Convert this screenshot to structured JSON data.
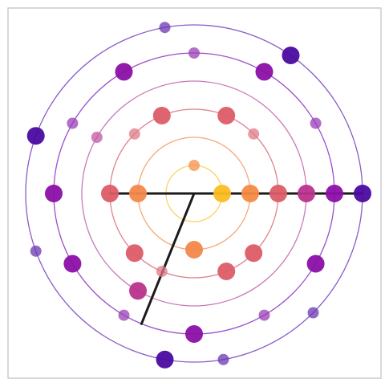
{
  "chart_data": {
    "type": "scatter",
    "description_visible_text": "",
    "center": [
      0,
      0
    ],
    "rings": [
      {
        "radius": 1,
        "color": "#fcd267"
      },
      {
        "radius": 2,
        "color": "#f5a97a"
      },
      {
        "radius": 3,
        "color": "#e0838f"
      },
      {
        "radius": 4,
        "color": "#c97ab8"
      },
      {
        "radius": 5,
        "color": "#9a4fc9"
      },
      {
        "radius": 6,
        "color": "#8a5cc9"
      }
    ],
    "points": [
      {
        "ring": 1,
        "angle_deg": 0,
        "size": "large",
        "color": "#fbbd21"
      },
      {
        "ring": 1,
        "angle_deg": 270,
        "size": "small",
        "color": "#f68f4a"
      },
      {
        "ring": 2,
        "angle_deg": 0,
        "size": "large",
        "color": "#f68a43"
      },
      {
        "ring": 2,
        "angle_deg": 90,
        "size": "large",
        "color": "#f3874a"
      },
      {
        "ring": 2,
        "angle_deg": 180,
        "size": "large",
        "color": "#f3884a"
      },
      {
        "ring": 3,
        "angle_deg": 0,
        "size": "large",
        "color": "#dc5d68"
      },
      {
        "ring": 3,
        "angle_deg": 45,
        "size": "large",
        "color": "#dc5d68"
      },
      {
        "ring": 3,
        "angle_deg": 67.5,
        "size": "large",
        "color": "#dc5d68"
      },
      {
        "ring": 3,
        "angle_deg": 112.5,
        "size": "small",
        "color": "#e07a85"
      },
      {
        "ring": 3,
        "angle_deg": 135,
        "size": "large",
        "color": "#dc5d68"
      },
      {
        "ring": 3,
        "angle_deg": 180,
        "size": "large",
        "color": "#dc5d68"
      },
      {
        "ring": 3,
        "angle_deg": 225,
        "size": "small",
        "color": "#e07a85"
      },
      {
        "ring": 3,
        "angle_deg": 247.5,
        "size": "large",
        "color": "#dc5d68"
      },
      {
        "ring": 3,
        "angle_deg": 292.5,
        "size": "large",
        "color": "#dc5d68"
      },
      {
        "ring": 3,
        "angle_deg": 315,
        "size": "small",
        "color": "#e07a85"
      },
      {
        "ring": 4,
        "angle_deg": 0,
        "size": "large",
        "color": "#b8338c"
      },
      {
        "ring": 4,
        "angle_deg": 120,
        "size": "large",
        "color": "#b8338c"
      },
      {
        "ring": 4,
        "angle_deg": 210,
        "size": "small",
        "color": "#c157a2"
      },
      {
        "ring": 5,
        "angle_deg": 0,
        "size": "large",
        "color": "#8b0fa6"
      },
      {
        "ring": 5,
        "angle_deg": 30,
        "size": "large",
        "color": "#8b0fa6"
      },
      {
        "ring": 5,
        "angle_deg": 60,
        "size": "small",
        "color": "#9a3db6"
      },
      {
        "ring": 5,
        "angle_deg": 90,
        "size": "large",
        "color": "#8b0fa6"
      },
      {
        "ring": 5,
        "angle_deg": 120,
        "size": "small",
        "color": "#9a3db6"
      },
      {
        "ring": 5,
        "angle_deg": 150,
        "size": "large",
        "color": "#8b0fa6"
      },
      {
        "ring": 5,
        "angle_deg": 180,
        "size": "large",
        "color": "#8b0fa6"
      },
      {
        "ring": 5,
        "angle_deg": 210,
        "size": "small",
        "color": "#9a3db6"
      },
      {
        "ring": 5,
        "angle_deg": 240,
        "size": "large",
        "color": "#8b0fa6"
      },
      {
        "ring": 5,
        "angle_deg": 270,
        "size": "small",
        "color": "#9a3db6"
      },
      {
        "ring": 5,
        "angle_deg": 300,
        "size": "large",
        "color": "#8b0fa6"
      },
      {
        "ring": 5,
        "angle_deg": 330,
        "size": "small",
        "color": "#9a3db6"
      },
      {
        "ring": 6,
        "angle_deg": 0,
        "size": "large",
        "color": "#4a0aa0"
      },
      {
        "ring": 6,
        "angle_deg": 45,
        "size": "small",
        "color": "#6a35b0"
      },
      {
        "ring": 6,
        "angle_deg": 80,
        "size": "small",
        "color": "#6a35b0"
      },
      {
        "ring": 6,
        "angle_deg": 100,
        "size": "large",
        "color": "#4a0aa0"
      },
      {
        "ring": 6,
        "angle_deg": 160,
        "size": "small",
        "color": "#6a35b0"
      },
      {
        "ring": 6,
        "angle_deg": 200,
        "size": "large",
        "color": "#4a0aa0"
      },
      {
        "ring": 6,
        "angle_deg": 260,
        "size": "small",
        "color": "#6a35b0"
      },
      {
        "ring": 6,
        "angle_deg": 305,
        "size": "large",
        "color": "#4a0aa0"
      }
    ],
    "lines": [
      {
        "from": {
          "ring": 0,
          "angle_deg": 0
        },
        "to": {
          "ring": 6,
          "angle_deg": 0
        },
        "color": "#1a1a1a"
      },
      {
        "from": {
          "ring": 3,
          "angle_deg": 180
        },
        "to": {
          "ring": 0,
          "angle_deg": 0
        },
        "color": "#1a1a1a"
      },
      {
        "from": {
          "ring": 0,
          "angle_deg": 0
        },
        "to": {
          "ring": 5,
          "angle_deg": 112
        },
        "color": "#1a1a1a"
      }
    ],
    "frame_color": "#cccccc"
  }
}
